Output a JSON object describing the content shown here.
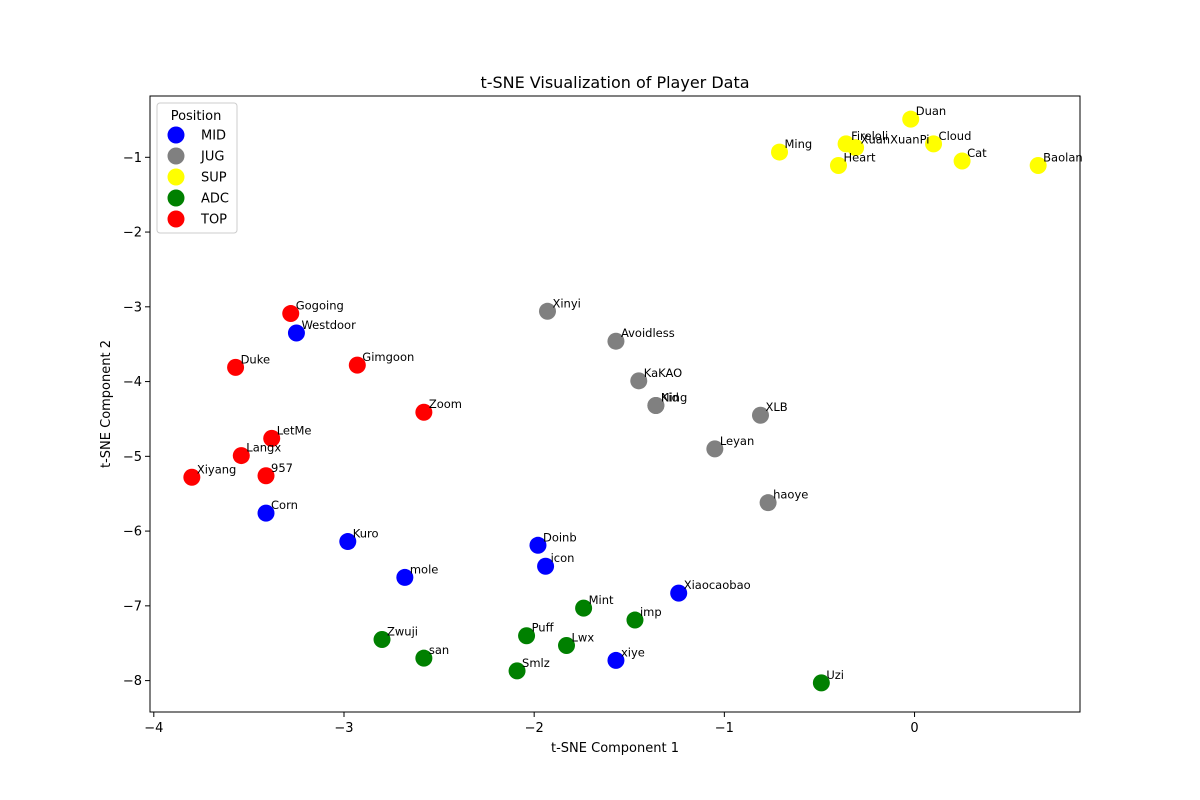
{
  "chart_data": {
    "type": "scatter",
    "title": "t-SNE Visualization of Player Data",
    "xlabel": "t-SNE Component 1",
    "ylabel": "t-SNE Component 2",
    "xlim": [
      -4.02,
      0.87
    ],
    "ylim": [
      -8.42,
      -0.18
    ],
    "xticks": [
      -4,
      -3,
      -2,
      -1,
      0
    ],
    "yticks": [
      -8,
      -7,
      -6,
      -5,
      -4,
      -3,
      -2,
      -1
    ],
    "xtick_labels": [
      "−4",
      "−3",
      "−2",
      "−1",
      "0"
    ],
    "ytick_labels": [
      "−8",
      "−7",
      "−6",
      "−5",
      "−4",
      "−3",
      "−2",
      "−1"
    ],
    "grid": false,
    "legend": {
      "title": "Position",
      "placement": "top-left"
    },
    "series": [
      {
        "name": "MID",
        "color": "#0000ff",
        "points": [
          {
            "label": "Westdoor",
            "x": -3.25,
            "y": -3.35
          },
          {
            "label": "Corn",
            "x": -3.41,
            "y": -5.76
          },
          {
            "label": "Kuro",
            "x": -2.98,
            "y": -6.14
          },
          {
            "label": "mole",
            "x": -2.68,
            "y": -6.62
          },
          {
            "label": "Doinb",
            "x": -1.98,
            "y": -6.19
          },
          {
            "label": "icon",
            "x": -1.94,
            "y": -6.47
          },
          {
            "label": "Xiaocaobao",
            "x": -1.24,
            "y": -6.83
          },
          {
            "label": "xiye",
            "x": -1.57,
            "y": -7.73
          }
        ]
      },
      {
        "name": "JUG",
        "color": "#808080",
        "points": [
          {
            "label": "Xinyi",
            "x": -1.93,
            "y": -3.06
          },
          {
            "label": "Avoidless",
            "x": -1.57,
            "y": -3.46
          },
          {
            "label": "KaKAO",
            "x": -1.45,
            "y": -3.99
          },
          {
            "label": "Kid",
            "x": -1.36,
            "y": -4.32
          },
          {
            "label": "Ning",
            "x": -1.36,
            "y": -4.32
          },
          {
            "label": "XLB",
            "x": -0.81,
            "y": -4.45
          },
          {
            "label": "Leyan",
            "x": -1.05,
            "y": -4.9
          },
          {
            "label": "haoye",
            "x": -0.77,
            "y": -5.62
          }
        ]
      },
      {
        "name": "SUP",
        "color": "#ffff00",
        "points": [
          {
            "label": "Duan",
            "x": -0.02,
            "y": -0.49
          },
          {
            "label": "Fireloli",
            "x": -0.36,
            "y": -0.82
          },
          {
            "label": "XuanXuanPi",
            "x": -0.31,
            "y": -0.87
          },
          {
            "label": "Cloud",
            "x": 0.1,
            "y": -0.82
          },
          {
            "label": "Ming",
            "x": -0.71,
            "y": -0.93
          },
          {
            "label": "Heart",
            "x": -0.4,
            "y": -1.11
          },
          {
            "label": "Cat",
            "x": 0.25,
            "y": -1.05
          },
          {
            "label": "Baolan",
            "x": 0.65,
            "y": -1.11
          }
        ]
      },
      {
        "name": "ADC",
        "color": "#008000",
        "points": [
          {
            "label": "Mint",
            "x": -1.74,
            "y": -7.03
          },
          {
            "label": "imp",
            "x": -1.47,
            "y": -7.19
          },
          {
            "label": "Zwuji",
            "x": -2.8,
            "y": -7.45
          },
          {
            "label": "Puff",
            "x": -2.04,
            "y": -7.4
          },
          {
            "label": "Lwx",
            "x": -1.83,
            "y": -7.53
          },
          {
            "label": "san",
            "x": -2.58,
            "y": -7.7
          },
          {
            "label": "Smlz",
            "x": -2.09,
            "y": -7.87
          },
          {
            "label": "Uzi",
            "x": -0.49,
            "y": -8.03
          }
        ]
      },
      {
        "name": "TOP",
        "color": "#ff0000",
        "points": [
          {
            "label": "Gogoing",
            "x": -3.28,
            "y": -3.09
          },
          {
            "label": "Gimgoon",
            "x": -2.93,
            "y": -3.78
          },
          {
            "label": "Duke",
            "x": -3.57,
            "y": -3.81
          },
          {
            "label": "Zoom",
            "x": -2.58,
            "y": -4.41
          },
          {
            "label": "LetMe",
            "x": -3.38,
            "y": -4.76
          },
          {
            "label": "Langx",
            "x": -3.54,
            "y": -4.99
          },
          {
            "label": "957",
            "x": -3.41,
            "y": -5.26
          },
          {
            "label": "Xiyang",
            "x": -3.8,
            "y": -5.28
          }
        ]
      }
    ]
  }
}
